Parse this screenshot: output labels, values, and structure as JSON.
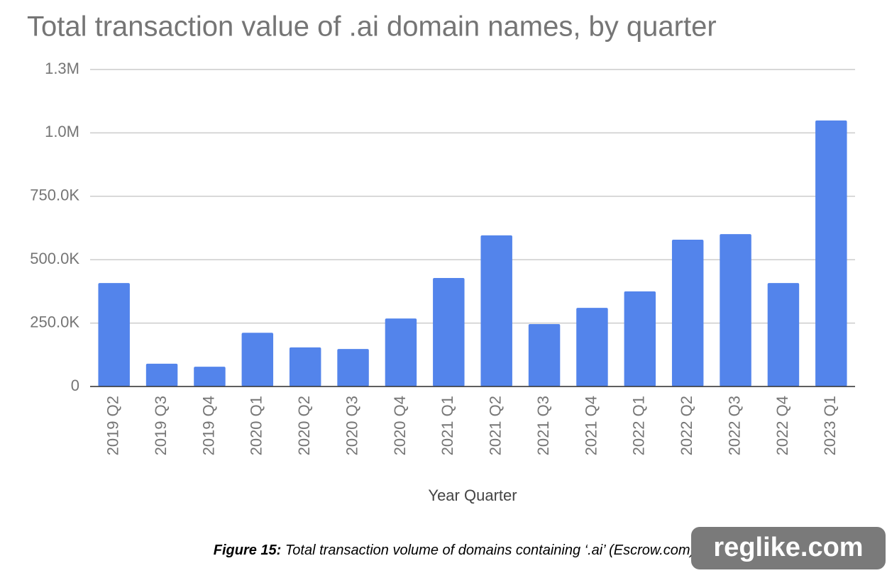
{
  "chart_data": {
    "type": "bar",
    "title": "Total transaction value of .ai domain names, by quarter",
    "x_label": "Year Quarter",
    "categories": [
      "2019 Q2",
      "2019 Q3",
      "2019 Q4",
      "2020 Q1",
      "2020 Q2",
      "2020 Q3",
      "2020 Q4",
      "2021 Q1",
      "2021 Q2",
      "2021 Q3",
      "2021 Q4",
      "2022 Q1",
      "2022 Q2",
      "2022 Q3",
      "2022 Q4",
      "2023 Q1"
    ],
    "values": [
      408000,
      90000,
      78000,
      212000,
      154000,
      148000,
      268000,
      428000,
      596000,
      246000,
      310000,
      375000,
      579000,
      601000,
      408000,
      1049000
    ],
    "color": "#5384eb",
    "ylim": [
      0,
      1250000
    ],
    "yticks": [
      0,
      {
        "value": 250000,
        "label": "250.0K"
      },
      {
        "value": 500000,
        "label": "500.0K"
      },
      {
        "value": 750000,
        "label": "750.0K"
      },
      {
        "value": 1000000,
        "label": "1.0M"
      },
      {
        "value": 1250000,
        "label": "1.3M"
      }
    ],
    "grid": true
  },
  "caption": {
    "figure": "Figure 15:",
    "text": "Total transaction volume of domains containing ‘.ai’ (Escrow.com)"
  },
  "watermark": "reglike.com"
}
